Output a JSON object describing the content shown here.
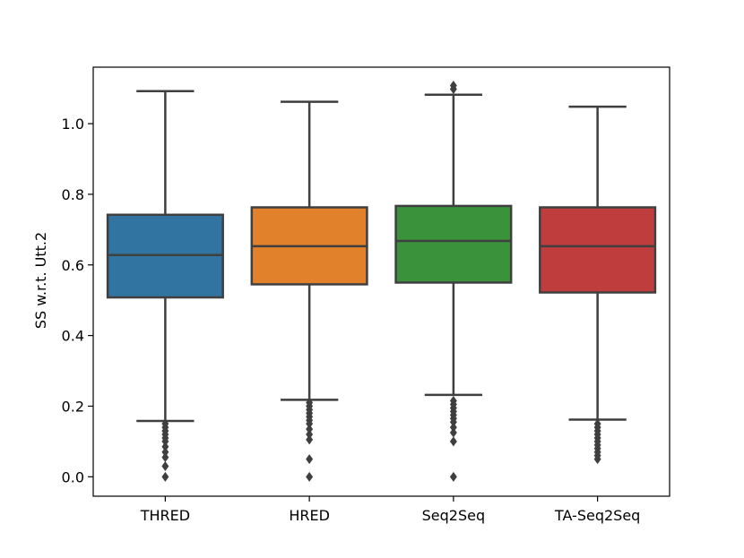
{
  "chart_data": {
    "type": "box",
    "title": "",
    "xlabel": "",
    "ylabel": "SS w.r.t. Utt.2",
    "ylim": [
      -0.055,
      1.16
    ],
    "yticks": [
      0.0,
      0.2,
      0.4,
      0.6,
      0.8,
      1.0
    ],
    "ytick_labels": [
      "0.0",
      "0.2",
      "0.4",
      "0.6",
      "0.8",
      "1.0"
    ],
    "grid": false,
    "legend": "none",
    "categories": [
      "THRED",
      "HRED",
      "Seq2Seq",
      "TA-Seq2Seq"
    ],
    "series": [
      {
        "whisker_low": 0.158,
        "q1": 0.508,
        "median": 0.628,
        "q3": 0.742,
        "whisker_high": 1.092,
        "outliers": [
          0.0,
          0.03,
          0.055,
          0.07,
          0.085,
          0.1,
          0.11,
          0.12,
          0.13,
          0.14,
          0.15
        ],
        "color": "#3274a1"
      },
      {
        "whisker_low": 0.218,
        "q1": 0.545,
        "median": 0.653,
        "q3": 0.763,
        "whisker_high": 1.062,
        "outliers": [
          0.0,
          0.05,
          0.105,
          0.12,
          0.135,
          0.15,
          0.16,
          0.17,
          0.18,
          0.19,
          0.2,
          0.21
        ],
        "color": "#e1812c"
      },
      {
        "whisker_low": 0.232,
        "q1": 0.55,
        "median": 0.668,
        "q3": 0.767,
        "whisker_high": 1.082,
        "outliers": [
          0.0,
          0.1,
          0.125,
          0.14,
          0.155,
          0.165,
          0.175,
          0.185,
          0.195,
          0.205,
          0.215,
          1.098,
          1.108
        ],
        "color": "#3a923a"
      },
      {
        "whisker_low": 0.162,
        "q1": 0.522,
        "median": 0.653,
        "q3": 0.763,
        "whisker_high": 1.048,
        "outliers": [
          0.05,
          0.06,
          0.07,
          0.08,
          0.09,
          0.1,
          0.11,
          0.12,
          0.13,
          0.14,
          0.15
        ],
        "color": "#c03d3e"
      }
    ],
    "line_color": "#3f3f3f"
  }
}
